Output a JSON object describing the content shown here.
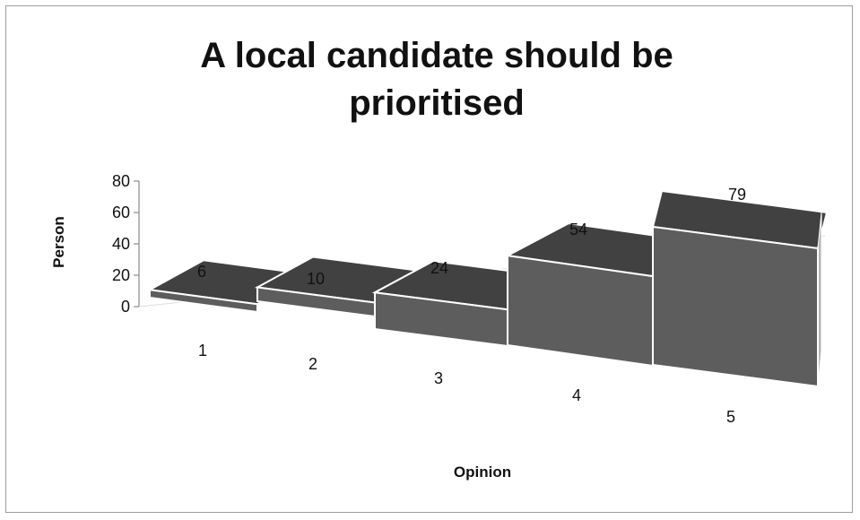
{
  "chart_data": {
    "type": "bar",
    "title": "A local candidate should be prioritised",
    "xlabel": "Opinion",
    "ylabel": "Person",
    "categories": [
      "1",
      "2",
      "3",
      "4",
      "5"
    ],
    "values": [
      6,
      10,
      24,
      54,
      79
    ],
    "data_labels": [
      "6",
      "10",
      "24",
      "54",
      "79"
    ],
    "yticks": [
      "0",
      "20",
      "40",
      "60",
      "80"
    ],
    "ylim": [
      0,
      80
    ],
    "grid": false,
    "legend": "none",
    "colors": {
      "bar_top": "#414141",
      "bar_front": "#5d5d5d",
      "bar_side": "#b5b5b5",
      "edge": "#ffffff",
      "axis": "#8a8a8a"
    }
  }
}
